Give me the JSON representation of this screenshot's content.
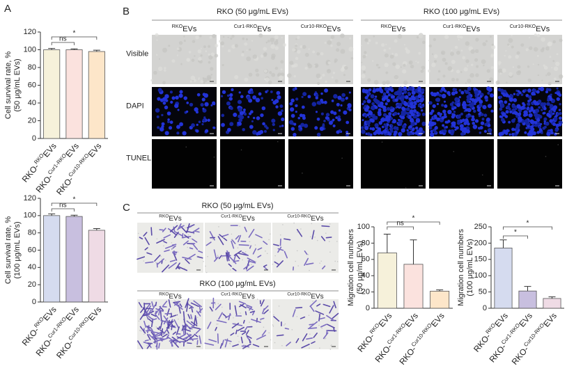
{
  "panel_a": {
    "label": "A"
  },
  "panel_b": {
    "label": "B",
    "groups": [
      "RKO (50 μg/mL EVs)",
      "RKO (100 μg/mL EVs)"
    ],
    "columns": [
      {
        "sup": "RKO",
        "tail": "EVs"
      },
      {
        "sup": "Cur1-RKO",
        "tail": "EVs"
      },
      {
        "sup": "Cur10-RKO",
        "tail": "EVs"
      }
    ],
    "rows": [
      "Visible",
      "DAPI",
      "TUNEL"
    ]
  },
  "panel_c": {
    "label": "C",
    "groups": [
      "RKO (50 μg/mL EVs)",
      "RKO (100 μg/mL EVs)"
    ],
    "columns": [
      {
        "sup": "RKO",
        "tail": "EVs"
      },
      {
        "sup": "Cur1-RKO",
        "tail": "EVs"
      },
      {
        "sup": "Cur10-RKO",
        "tail": "EVs"
      }
    ]
  },
  "chart_data": [
    {
      "type": "bar",
      "ylabel": [
        "Cell survival rate, %",
        "(50 μg/mL EVs)"
      ],
      "categories": [
        {
          "base": "RKO-",
          "sup": "RKO",
          "tail": "EVs"
        },
        {
          "base": "RKO-",
          "sup": "Cur1-RKO",
          "tail": "EVs"
        },
        {
          "base": "RKO-",
          "sup": "Cur10-RKO",
          "tail": "EVs"
        }
      ],
      "values": [
        100,
        100,
        98
      ],
      "errors": [
        1.5,
        1,
        1.5
      ],
      "colors": [
        "#f6f1da",
        "#fbe2de",
        "#fde6c9"
      ],
      "ylim": [
        0,
        120
      ],
      "yticks": [
        0,
        20,
        40,
        60,
        80,
        100,
        120
      ],
      "annotations": [
        {
          "text": "ns",
          "between": [
            0,
            1
          ]
        },
        {
          "text": "*",
          "between": [
            0,
            2
          ]
        }
      ]
    },
    {
      "type": "bar",
      "ylabel": [
        "Cell survival rate, %",
        "(100 μg/mL EVs)"
      ],
      "categories": [
        {
          "base": "RKO-",
          "sup": "RKO",
          "tail": "EVs"
        },
        {
          "base": "RKO-",
          "sup": "Cur1-RKO",
          "tail": "EVs"
        },
        {
          "base": "RKO-",
          "sup": "Cur10-RKO",
          "tail": "EVs"
        }
      ],
      "values": [
        100,
        99,
        83
      ],
      "errors": [
        2,
        1.5,
        2
      ],
      "colors": [
        "#d5dbef",
        "#c8bfdf",
        "#efdbe5"
      ],
      "ylim": [
        0,
        120
      ],
      "yticks": [
        0,
        20,
        40,
        60,
        80,
        100,
        120
      ],
      "annotations": [
        {
          "text": "ns",
          "between": [
            0,
            1
          ]
        },
        {
          "text": "*",
          "between": [
            0,
            2
          ]
        }
      ]
    },
    {
      "type": "bar",
      "ylabel": [
        "Migration cell numbers",
        "(50 μg/mL EVs)"
      ],
      "categories": [
        {
          "base": "RKO-",
          "sup": "RKO",
          "tail": "EVs"
        },
        {
          "base": "RKO-",
          "sup": "Cur1-RKO",
          "tail": "EVs"
        },
        {
          "base": "RKO-",
          "sup": "Cur10-RKO",
          "tail": "EVs"
        }
      ],
      "values": [
        68,
        54,
        21
      ],
      "errors": [
        23,
        30,
        1.5
      ],
      "colors": [
        "#f6f1da",
        "#fbe2de",
        "#fde6c9"
      ],
      "ylim": [
        0,
        100
      ],
      "yticks": [
        0,
        20,
        40,
        60,
        80,
        100
      ],
      "annotations": [
        {
          "text": "ns",
          "between": [
            0,
            1
          ]
        },
        {
          "text": "*",
          "between": [
            0,
            2
          ]
        }
      ]
    },
    {
      "type": "bar",
      "ylabel": [
        "Migration cell numbers",
        "(100 μg/mL EVs)"
      ],
      "categories": [
        {
          "base": "RKO-",
          "sup": "RKO",
          "tail": "EVs"
        },
        {
          "base": "RKO-",
          "sup": "Cur1-RKO",
          "tail": "EVs"
        },
        {
          "base": "RKO-",
          "sup": "Cur10-RKO",
          "tail": "EVs"
        }
      ],
      "values": [
        185,
        53,
        30
      ],
      "errors": [
        25,
        14,
        5
      ],
      "colors": [
        "#d5dbef",
        "#c8bfdf",
        "#efdbe5"
      ],
      "ylim": [
        0,
        250
      ],
      "yticks": [
        0,
        50,
        100,
        150,
        200,
        250
      ],
      "annotations": [
        {
          "text": "*",
          "between": [
            0,
            1
          ]
        },
        {
          "text": "*",
          "between": [
            0,
            2
          ]
        }
      ]
    }
  ]
}
